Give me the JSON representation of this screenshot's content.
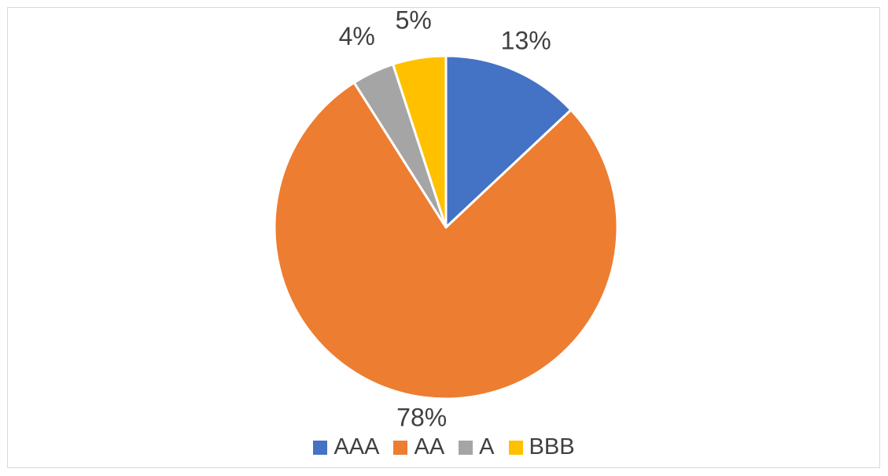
{
  "chart_data": {
    "type": "pie",
    "categories": [
      "AAA",
      "AA",
      "A",
      "BBB"
    ],
    "values": [
      13,
      78,
      4,
      5
    ],
    "labels": [
      "13%",
      "78%",
      "4%",
      "5%"
    ],
    "colors": [
      "#4472C4",
      "#ED7D31",
      "#A5A5A5",
      "#FFC000"
    ],
    "start_angle_deg": 0,
    "direction": "clockwise",
    "legend_position": "bottom",
    "title": ""
  }
}
